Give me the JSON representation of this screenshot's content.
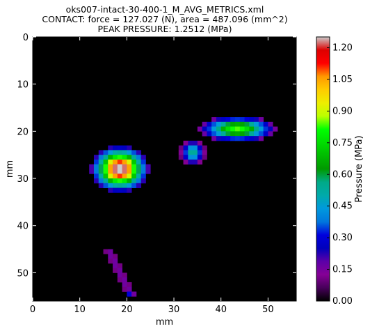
{
  "chart_data": {
    "type": "heatmap",
    "title": [
      "oks007-intact-30-400-1_M_AVG_METRICS.xml",
      "CONTACT: force = 127.027 (N), area = 487.096 (mm^2)",
      "PEAK PRESSURE: 1.2512 (MPa)"
    ],
    "xlabel": "mm",
    "ylabel": "mm",
    "xlim": [
      0,
      56
    ],
    "ylim": [
      56,
      0
    ],
    "x_ticks": [
      0,
      10,
      20,
      30,
      40,
      50
    ],
    "y_ticks": [
      0,
      10,
      20,
      30,
      40,
      50
    ],
    "colorbar": {
      "label": "Pressure (MPa)",
      "range": [
        0,
        1.2512
      ],
      "ticks": [
        "0.00",
        "0.15",
        "0.30",
        "0.45",
        "0.60",
        "0.75",
        "0.90",
        "1.05",
        "1.20"
      ],
      "colormap": "nipy_spectral"
    },
    "regions": [
      {
        "name": "left-contact",
        "center_mm": [
          18.5,
          28.0
        ],
        "radius_mm": [
          5.5,
          4.5
        ],
        "peak_mpa": 1.25
      },
      {
        "name": "right-contact",
        "center_mm": [
          43.5,
          19.5
        ],
        "radius_mm": [
          7.5,
          2.5
        ],
        "peak_mpa": 0.78
      },
      {
        "name": "lobe-contact",
        "center_mm": [
          34.0,
          24.5
        ],
        "radius_mm": [
          2.5,
          2.5
        ],
        "peak_mpa": 0.5
      },
      {
        "name": "streak-contact",
        "start_mm": [
          16.0,
          45.0
        ],
        "end_mm": [
          21.0,
          55.0
        ],
        "peak_mpa": 0.3
      }
    ]
  }
}
